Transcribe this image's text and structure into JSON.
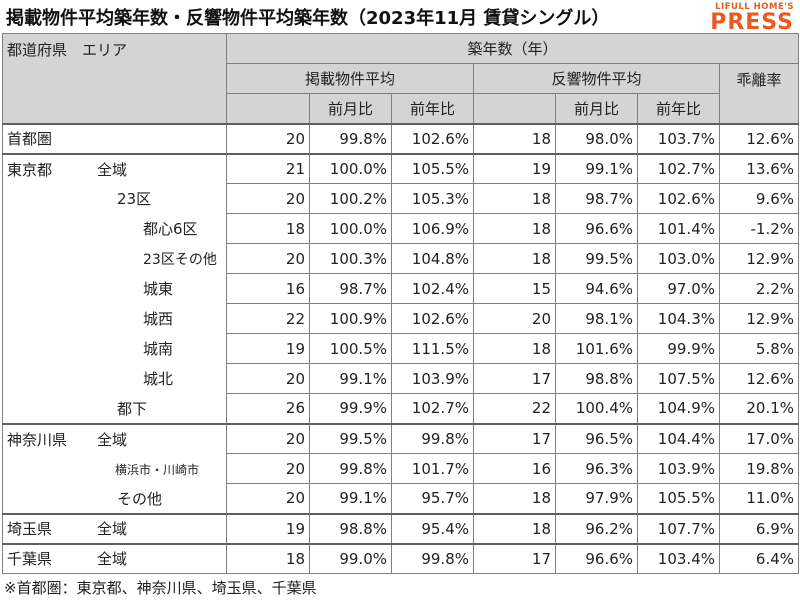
{
  "title": "掲載物件平均築年数・反響物件平均築年数（2023年11月 賃貸シングル）",
  "logo": {
    "sub": "LIFULL HOME'S",
    "main": "PRESS"
  },
  "headers": {
    "region": "都道府県　エリア",
    "age": "築年数（年）",
    "listed": "掲載物件平均",
    "inquired": "反響物件平均",
    "divergence": "乖離率",
    "mom": "前月比",
    "yoy": "前年比"
  },
  "rows": [
    {
      "pref": "首都圏",
      "area": "",
      "listed": "20",
      "listed_mom": "99.8%",
      "listed_yoy": "102.6%",
      "inq": "18",
      "inq_mom": "98.0%",
      "inq_yoy": "103.7%",
      "div": "12.6%"
    },
    {
      "pref": "東京都",
      "area": "全域",
      "listed": "21",
      "listed_mom": "100.0%",
      "listed_yoy": "105.5%",
      "inq": "19",
      "inq_mom": "99.1%",
      "inq_yoy": "102.7%",
      "div": "13.6%"
    },
    {
      "pref": "",
      "area": "23区",
      "listed": "20",
      "listed_mom": "100.2%",
      "listed_yoy": "105.3%",
      "inq": "18",
      "inq_mom": "98.7%",
      "inq_yoy": "102.6%",
      "div": "9.6%"
    },
    {
      "pref": "",
      "area": "都心6区",
      "listed": "18",
      "listed_mom": "100.0%",
      "listed_yoy": "106.9%",
      "inq": "18",
      "inq_mom": "96.6%",
      "inq_yoy": "101.4%",
      "div": "-1.2%"
    },
    {
      "pref": "",
      "area": "23区その他",
      "listed": "20",
      "listed_mom": "100.3%",
      "listed_yoy": "104.8%",
      "inq": "18",
      "inq_mom": "99.5%",
      "inq_yoy": "103.0%",
      "div": "12.9%"
    },
    {
      "pref": "",
      "area": "城東",
      "listed": "16",
      "listed_mom": "98.7%",
      "listed_yoy": "102.4%",
      "inq": "15",
      "inq_mom": "94.6%",
      "inq_yoy": "97.0%",
      "div": "2.2%"
    },
    {
      "pref": "",
      "area": "城西",
      "listed": "22",
      "listed_mom": "100.9%",
      "listed_yoy": "102.6%",
      "inq": "20",
      "inq_mom": "98.1%",
      "inq_yoy": "104.3%",
      "div": "12.9%"
    },
    {
      "pref": "",
      "area": "城南",
      "listed": "19",
      "listed_mom": "100.5%",
      "listed_yoy": "111.5%",
      "inq": "18",
      "inq_mom": "101.6%",
      "inq_yoy": "99.9%",
      "div": "5.8%"
    },
    {
      "pref": "",
      "area": "城北",
      "listed": "20",
      "listed_mom": "99.1%",
      "listed_yoy": "103.9%",
      "inq": "17",
      "inq_mom": "98.8%",
      "inq_yoy": "107.5%",
      "div": "12.6%"
    },
    {
      "pref": "",
      "area": "都下",
      "listed": "26",
      "listed_mom": "99.9%",
      "listed_yoy": "102.7%",
      "inq": "22",
      "inq_mom": "100.4%",
      "inq_yoy": "104.9%",
      "div": "20.1%"
    },
    {
      "pref": "神奈川県",
      "area": "全域",
      "listed": "20",
      "listed_mom": "99.5%",
      "listed_yoy": "99.8%",
      "inq": "17",
      "inq_mom": "96.5%",
      "inq_yoy": "104.4%",
      "div": "17.0%"
    },
    {
      "pref": "",
      "area": "横浜市・川崎市",
      "listed": "20",
      "listed_mom": "99.8%",
      "listed_yoy": "101.7%",
      "inq": "16",
      "inq_mom": "96.3%",
      "inq_yoy": "103.9%",
      "div": "19.8%"
    },
    {
      "pref": "",
      "area": "その他",
      "listed": "20",
      "listed_mom": "99.1%",
      "listed_yoy": "95.7%",
      "inq": "18",
      "inq_mom": "97.9%",
      "inq_yoy": "105.5%",
      "div": "11.0%"
    },
    {
      "pref": "埼玉県",
      "area": "全域",
      "listed": "19",
      "listed_mom": "98.8%",
      "listed_yoy": "95.4%",
      "inq": "18",
      "inq_mom": "96.2%",
      "inq_yoy": "107.7%",
      "div": "6.9%"
    },
    {
      "pref": "千葉県",
      "area": "全域",
      "listed": "18",
      "listed_mom": "99.0%",
      "listed_yoy": "99.8%",
      "inq": "17",
      "inq_mom": "96.6%",
      "inq_yoy": "103.4%",
      "div": "6.4%"
    }
  ],
  "footnote": "※首都圏：東京都、神奈川県、埼玉県、千葉県",
  "colors": {
    "header_bg": "#d4d4d4",
    "brand_orange": "#ea5a1f"
  }
}
